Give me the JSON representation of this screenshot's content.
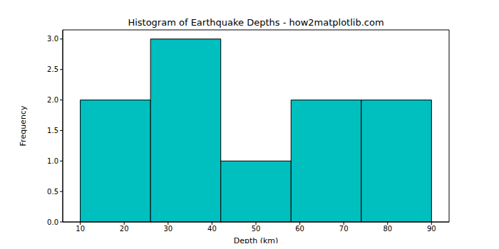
{
  "chart_data": {
    "type": "histogram",
    "title": "Histogram of Earthquake Depths - how2matplotlib.com",
    "x_label": "Depth (km)",
    "y_label": "Frequency",
    "bins": [
      10,
      26,
      42,
      58,
      74,
      90
    ],
    "values": [
      2,
      3,
      1,
      2,
      2
    ],
    "color": "#00bfbf",
    "xlim": [
      6,
      94
    ],
    "xticks": [
      10,
      20,
      30,
      40,
      50,
      60,
      70,
      80,
      90
    ],
    "ylim": [
      0,
      3.15
    ],
    "yticks": [
      {
        "value": 0,
        "label": "0.0"
      },
      {
        "value": 0.5,
        "label": "0.5"
      },
      {
        "value": 1,
        "label": "1.0"
      },
      {
        "value": 1.5,
        "label": "1.5"
      },
      {
        "value": 2,
        "label": "2.0"
      },
      {
        "value": 2.5,
        "label": "2.5"
      },
      {
        "value": 3,
        "label": "3.0"
      }
    ]
  }
}
